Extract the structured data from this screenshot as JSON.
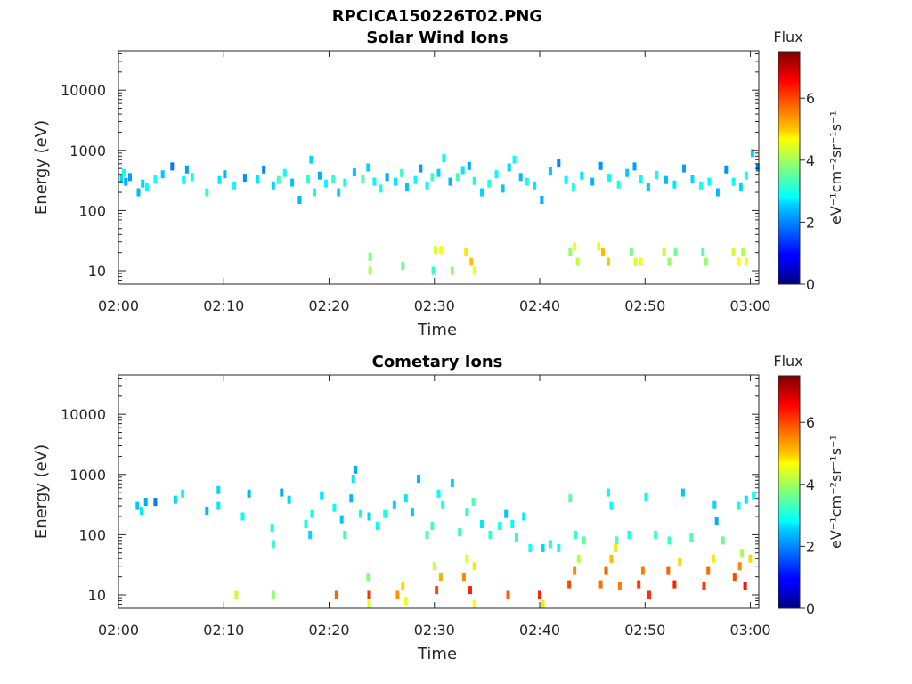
{
  "figure": {
    "title": "RPCICA150226T02.PNG"
  },
  "chart_data": [
    {
      "type": "heatmap",
      "title": "Solar Wind Ions",
      "xlabel": "Time",
      "ylabel": "Energy (eV)",
      "x_ticks": [
        "02:00",
        "02:10",
        "02:20",
        "02:30",
        "02:40",
        "02:50",
        "03:00"
      ],
      "xlim_minutes": [
        0,
        60.8
      ],
      "y_scale": "log",
      "ylim": [
        6,
        45000
      ],
      "y_ticks": [
        10,
        100,
        1000,
        10000
      ],
      "y_tick_labels": [
        "10",
        "100",
        "1000",
        "10000"
      ],
      "colorbar": {
        "label": "Flux",
        "unit": "eV⁻¹cm⁻²sr⁻¹s⁻¹",
        "min": 0,
        "max": 7.5,
        "ticks": [
          0,
          2,
          4,
          6
        ],
        "colormap": "jet"
      },
      "cells": [
        [
          0.3,
          330,
          2.6
        ],
        [
          0.5,
          420,
          2.9
        ],
        [
          0.7,
          300,
          2.3
        ],
        [
          1.1,
          360,
          2.2
        ],
        [
          1.9,
          200,
          2.4
        ],
        [
          2.3,
          280,
          2.6
        ],
        [
          2.7,
          250,
          2.8
        ],
        [
          3.5,
          330,
          3.0
        ],
        [
          4.2,
          400,
          2.5
        ],
        [
          5.1,
          540,
          1.9
        ],
        [
          6.2,
          320,
          2.8
        ],
        [
          6.5,
          480,
          2.2
        ],
        [
          7.0,
          360,
          2.9
        ],
        [
          8.4,
          200,
          3.1
        ],
        [
          9.6,
          320,
          2.7
        ],
        [
          10.1,
          400,
          2.4
        ],
        [
          11.0,
          260,
          2.8
        ],
        [
          12.0,
          350,
          2.1
        ],
        [
          13.2,
          330,
          2.7
        ],
        [
          13.8,
          480,
          2.0
        ],
        [
          14.7,
          260,
          2.6
        ],
        [
          15.2,
          320,
          3.3
        ],
        [
          15.8,
          420,
          2.9
        ],
        [
          16.5,
          290,
          2.5
        ],
        [
          17.2,
          150,
          2.4
        ],
        [
          18.0,
          330,
          3.2
        ],
        [
          18.3,
          700,
          2.6
        ],
        [
          18.6,
          200,
          3.0
        ],
        [
          19.1,
          380,
          2.3
        ],
        [
          19.7,
          280,
          2.8
        ],
        [
          20.4,
          340,
          3.2
        ],
        [
          20.9,
          200,
          2.6
        ],
        [
          21.5,
          290,
          2.9
        ],
        [
          22.4,
          430,
          2.5
        ],
        [
          23.2,
          340,
          3.4
        ],
        [
          23.7,
          520,
          2.6
        ],
        [
          24.3,
          300,
          2.8
        ],
        [
          24.9,
          230,
          3.0
        ],
        [
          25.5,
          360,
          2.3
        ],
        [
          26.3,
          300,
          2.7
        ],
        [
          26.9,
          420,
          3.2
        ],
        [
          27.4,
          250,
          2.5
        ],
        [
          28.2,
          320,
          2.8
        ],
        [
          28.7,
          500,
          2.2
        ],
        [
          29.3,
          260,
          2.9
        ],
        [
          29.8,
          360,
          3.3
        ],
        [
          30.4,
          420,
          2.6
        ],
        [
          30.9,
          740,
          2.8
        ],
        [
          31.5,
          300,
          2.4
        ],
        [
          32.2,
          360,
          3.3
        ],
        [
          32.7,
          470,
          2.7
        ],
        [
          33.3,
          550,
          2.3
        ],
        [
          33.8,
          310,
          2.9
        ],
        [
          34.5,
          200,
          2.6
        ],
        [
          35.2,
          280,
          3.1
        ],
        [
          35.9,
          400,
          2.8
        ],
        [
          36.5,
          230,
          2.5
        ],
        [
          37.1,
          520,
          2.6
        ],
        [
          37.6,
          700,
          2.9
        ],
        [
          38.2,
          360,
          2.4
        ],
        [
          38.8,
          300,
          3.0
        ],
        [
          39.5,
          260,
          2.7
        ],
        [
          40.2,
          150,
          2.3
        ],
        [
          41.0,
          450,
          2.5
        ],
        [
          41.8,
          620,
          2.0
        ],
        [
          42.5,
          320,
          2.8
        ],
        [
          43.2,
          250,
          3.1
        ],
        [
          44.0,
          380,
          2.7
        ],
        [
          45.0,
          300,
          2.4
        ],
        [
          45.8,
          550,
          2.1
        ],
        [
          46.6,
          350,
          2.8
        ],
        [
          47.5,
          270,
          3.0
        ],
        [
          48.3,
          420,
          2.5
        ],
        [
          49.0,
          540,
          2.2
        ],
        [
          49.6,
          330,
          2.8
        ],
        [
          50.3,
          250,
          2.5
        ],
        [
          51.1,
          390,
          2.9
        ],
        [
          52.0,
          320,
          2.4
        ],
        [
          52.8,
          270,
          2.7
        ],
        [
          53.7,
          500,
          2.2
        ],
        [
          54.5,
          330,
          2.6
        ],
        [
          55.3,
          260,
          3.0
        ],
        [
          56.1,
          300,
          2.8
        ],
        [
          56.9,
          200,
          2.4
        ],
        [
          57.7,
          480,
          2.1
        ],
        [
          58.4,
          300,
          2.8
        ],
        [
          59.1,
          250,
          2.6
        ],
        [
          59.6,
          380,
          3.0
        ],
        [
          60.2,
          900,
          2.6
        ],
        [
          60.7,
          520,
          2.0
        ],
        [
          23.9,
          10,
          4.1
        ],
        [
          23.9,
          17,
          3.8
        ],
        [
          27.0,
          12,
          3.6
        ],
        [
          29.9,
          10,
          3.2
        ],
        [
          30.1,
          22,
          4.4
        ],
        [
          30.6,
          22,
          4.7
        ],
        [
          31.7,
          10,
          3.9
        ],
        [
          33.0,
          20,
          4.8
        ],
        [
          33.5,
          14,
          5.0
        ],
        [
          33.8,
          10,
          4.6
        ],
        [
          42.9,
          20,
          3.9
        ],
        [
          43.3,
          25,
          4.6
        ],
        [
          43.6,
          14,
          4.2
        ],
        [
          45.6,
          25,
          4.5
        ],
        [
          46.0,
          20,
          5.1
        ],
        [
          46.5,
          14,
          5.0
        ],
        [
          48.7,
          20,
          3.7
        ],
        [
          49.1,
          14,
          4.4
        ],
        [
          49.6,
          14,
          4.6
        ],
        [
          51.8,
          20,
          4.2
        ],
        [
          52.3,
          14,
          3.9
        ],
        [
          52.9,
          20,
          3.6
        ],
        [
          55.5,
          20,
          3.5
        ],
        [
          55.8,
          14,
          3.9
        ],
        [
          58.4,
          20,
          4.3
        ],
        [
          58.9,
          14,
          4.7
        ],
        [
          59.3,
          20,
          4.1
        ],
        [
          59.6,
          14,
          4.6
        ]
      ]
    },
    {
      "type": "heatmap",
      "title": "Cometary Ions",
      "xlabel": "Time",
      "ylabel": "Energy (eV)",
      "x_ticks": [
        "02:00",
        "02:10",
        "02:20",
        "02:30",
        "02:40",
        "02:50",
        "03:00"
      ],
      "xlim_minutes": [
        0,
        60.8
      ],
      "y_scale": "log",
      "ylim": [
        6,
        45000
      ],
      "y_ticks": [
        10,
        100,
        1000,
        10000
      ],
      "y_tick_labels": [
        "10",
        "100",
        "1000",
        "10000"
      ],
      "colorbar": {
        "label": "Flux",
        "unit": "eV⁻¹cm⁻²sr⁻¹s⁻¹",
        "min": 0,
        "max": 7.5,
        "ticks": [
          0,
          2,
          4,
          6
        ],
        "colormap": "jet"
      },
      "cells": [
        [
          1.8,
          300,
          2.5
        ],
        [
          2.2,
          250,
          2.7
        ],
        [
          2.6,
          350,
          2.3
        ],
        [
          3.5,
          350,
          1.9
        ],
        [
          5.4,
          380,
          2.6
        ],
        [
          6.1,
          480,
          2.9
        ],
        [
          8.4,
          250,
          2.4
        ],
        [
          9.5,
          300,
          2.7
        ],
        [
          9.5,
          550,
          2.6
        ],
        [
          11.8,
          200,
          2.8
        ],
        [
          12.4,
          480,
          2.4
        ],
        [
          15.5,
          500,
          2.3
        ],
        [
          16.2,
          380,
          2.6
        ],
        [
          14.6,
          130,
          2.9
        ],
        [
          14.7,
          70,
          3.2
        ],
        [
          17.8,
          150,
          3.0
        ],
        [
          18.2,
          100,
          2.6
        ],
        [
          18.4,
          220,
          2.8
        ],
        [
          19.3,
          450,
          2.7
        ],
        [
          20.5,
          280,
          2.9
        ],
        [
          21.2,
          180,
          2.5
        ],
        [
          21.5,
          100,
          3.2
        ],
        [
          22.1,
          400,
          2.4
        ],
        [
          22.3,
          850,
          2.7
        ],
        [
          22.5,
          1200,
          2.3
        ],
        [
          23.0,
          220,
          2.9
        ],
        [
          23.8,
          200,
          2.6
        ],
        [
          24.6,
          140,
          2.8
        ],
        [
          25.3,
          220,
          3.0
        ],
        [
          26.2,
          320,
          2.6
        ],
        [
          27.3,
          400,
          2.7
        ],
        [
          27.9,
          240,
          2.5
        ],
        [
          28.5,
          850,
          2.4
        ],
        [
          29.3,
          100,
          3.4
        ],
        [
          29.8,
          140,
          3.3
        ],
        [
          30.4,
          480,
          2.8
        ],
        [
          30.8,
          320,
          3.0
        ],
        [
          31.7,
          720,
          2.6
        ],
        [
          32.4,
          110,
          3.2
        ],
        [
          33.1,
          240,
          3.1
        ],
        [
          33.7,
          350,
          3.4
        ],
        [
          34.5,
          150,
          2.7
        ],
        [
          35.3,
          100,
          3.2
        ],
        [
          36.2,
          140,
          3.0
        ],
        [
          36.8,
          220,
          2.5
        ],
        [
          37.4,
          150,
          2.8
        ],
        [
          37.8,
          90,
          3.1
        ],
        [
          38.5,
          200,
          2.7
        ],
        [
          39.1,
          60,
          2.9
        ],
        [
          40.3,
          60,
          2.6
        ],
        [
          41.0,
          70,
          3.1
        ],
        [
          41.8,
          60,
          3.0
        ],
        [
          42.9,
          400,
          3.5
        ],
        [
          43.4,
          100,
          3.2
        ],
        [
          44.2,
          80,
          3.5
        ],
        [
          46.5,
          500,
          2.8
        ],
        [
          46.8,
          300,
          2.9
        ],
        [
          47.3,
          80,
          3.4
        ],
        [
          48.5,
          100,
          3.0
        ],
        [
          50.1,
          420,
          2.8
        ],
        [
          51.0,
          100,
          3.3
        ],
        [
          52.3,
          80,
          3.2
        ],
        [
          53.6,
          500,
          2.5
        ],
        [
          54.4,
          90,
          3.4
        ],
        [
          56.6,
          320,
          2.6
        ],
        [
          56.8,
          170,
          2.3
        ],
        [
          57.4,
          80,
          3.6
        ],
        [
          58.9,
          300,
          2.9
        ],
        [
          59.2,
          50,
          4.0
        ],
        [
          59.6,
          380,
          2.7
        ],
        [
          60.3,
          450,
          3.0
        ],
        [
          11.2,
          10,
          4.3
        ],
        [
          14.7,
          10,
          3.9
        ],
        [
          20.7,
          10,
          5.8
        ],
        [
          23.8,
          10,
          6.2
        ],
        [
          23.7,
          20,
          3.8
        ],
        [
          26.5,
          10,
          5.4
        ],
        [
          27.0,
          14,
          4.9
        ],
        [
          27.3,
          8,
          4.6
        ],
        [
          30.2,
          12,
          6.0
        ],
        [
          30.6,
          20,
          5.2
        ],
        [
          30.0,
          30,
          4.3
        ],
        [
          32.8,
          20,
          5.5
        ],
        [
          33.4,
          12,
          6.3
        ],
        [
          33.8,
          30,
          4.8
        ],
        [
          33.1,
          40,
          4.4
        ],
        [
          37.0,
          10,
          5.8
        ],
        [
          40.0,
          10,
          6.3
        ],
        [
          40.3,
          7,
          4.8
        ],
        [
          42.8,
          15,
          6.0
        ],
        [
          43.3,
          25,
          5.5
        ],
        [
          43.7,
          40,
          4.2
        ],
        [
          45.8,
          15,
          5.7
        ],
        [
          46.3,
          25,
          5.8
        ],
        [
          46.8,
          40,
          5.1
        ],
        [
          47.2,
          60,
          4.8
        ],
        [
          47.6,
          14,
          5.6
        ],
        [
          49.4,
          15,
          6.1
        ],
        [
          49.8,
          25,
          5.6
        ],
        [
          50.4,
          10,
          6.2
        ],
        [
          52.2,
          25,
          5.8
        ],
        [
          52.8,
          15,
          6.3
        ],
        [
          53.3,
          35,
          4.9
        ],
        [
          55.6,
          14,
          6.1
        ],
        [
          56.0,
          25,
          5.7
        ],
        [
          56.5,
          40,
          4.8
        ],
        [
          58.5,
          20,
          6.0
        ],
        [
          59.0,
          30,
          5.5
        ],
        [
          59.5,
          14,
          6.4
        ],
        [
          60.0,
          40,
          4.9
        ],
        [
          23.8,
          7,
          4.4
        ],
        [
          33.8,
          7,
          4.6
        ]
      ]
    }
  ]
}
